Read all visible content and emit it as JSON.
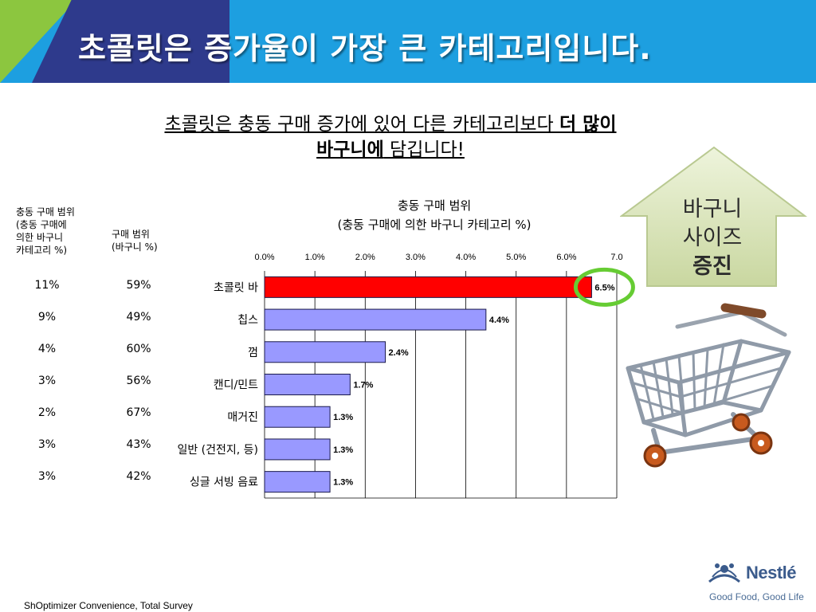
{
  "header": {
    "title": "초콜릿은 증가율이 가장 큰 카테고리입니다."
  },
  "subtitle": {
    "line1_plain": "초콜릿은 충동 구매 증가에 있어 다른 카테고리보다 ",
    "line1_bold": "더 많이",
    "line2_bold": "바구니에",
    "line2_plain": " 담깁니다!"
  },
  "table": {
    "col1_header": [
      "충동 구매 범위",
      "(충동 구매에",
      "의한 바구니",
      "카테고리 %)"
    ],
    "col2_header": [
      "구매 범위",
      "(바구니 %)"
    ],
    "col1_values": [
      "11%",
      "9%",
      "4%",
      "3%",
      "2%",
      "3%",
      "3%"
    ],
    "col2_values": [
      "59%",
      "49%",
      "60%",
      "56%",
      "67%",
      "43%",
      "42%"
    ]
  },
  "arrow": {
    "lines": [
      "바구니",
      "사이즈",
      "증진"
    ]
  },
  "source": "ShOptimizer Convenience, Total Survey",
  "logo": {
    "brand": "Nestlé",
    "tagline": "Good Food, Good Life"
  },
  "chart_data": {
    "type": "bar",
    "orientation": "horizontal",
    "title": [
      "충동 구매 범위",
      "(충동 구매에 의한 바구니 카테고리 %)"
    ],
    "categories": [
      "초콜릿 바",
      "칩스",
      "껌",
      "캔디/민트",
      "매거진",
      "일반 (건전지, 등)",
      "싱글 서빙 음료"
    ],
    "values": [
      6.5,
      4.4,
      2.4,
      1.7,
      1.3,
      1.3,
      1.3
    ],
    "data_labels": [
      "6.5%",
      "4.4%",
      "2.4%",
      "1.7%",
      "1.3%",
      "1.3%",
      "1.3%"
    ],
    "xlim": [
      0,
      7.0
    ],
    "xticks": [
      "0.0%",
      "1.0%",
      "2.0%",
      "3.0%",
      "4.0%",
      "5.0%",
      "6.0%",
      "7.0"
    ],
    "grid": true,
    "highlight_color": "#ff0000",
    "bar_color": "#9999ff",
    "callout_color": "#66cc33"
  }
}
